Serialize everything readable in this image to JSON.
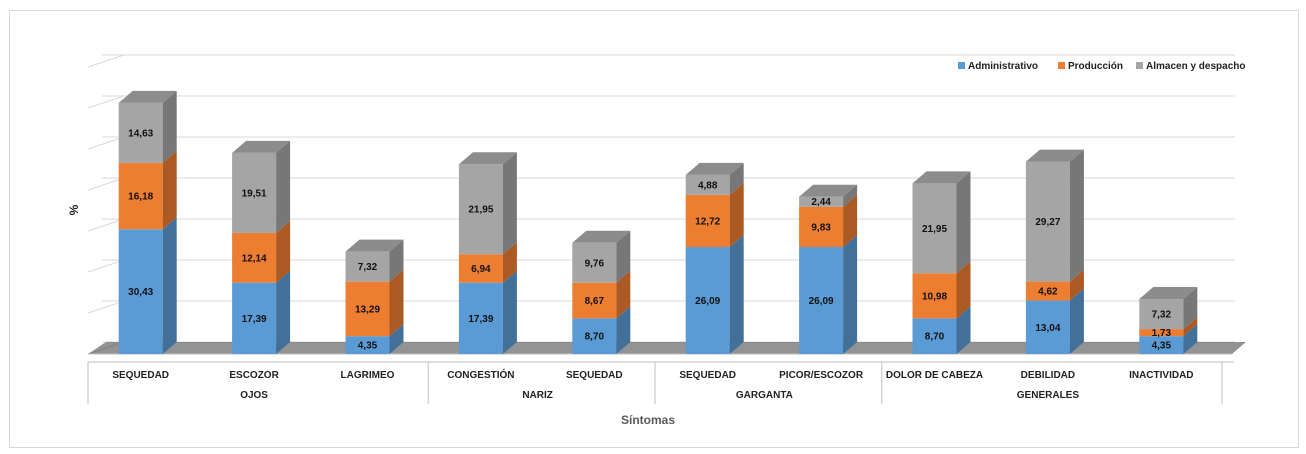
{
  "chart_data": {
    "type": "bar",
    "stacked": true,
    "three_d": true,
    "xlabel": "Síntomas",
    "ylabel": "%",
    "ylim": [
      0,
      70
    ],
    "grid": true,
    "legend_position": "top-right",
    "categories": [
      "SEQUEDAD",
      "ESCOZOR",
      "LAGRIMEO",
      "CONGESTIÓN",
      "SEQUEDAD",
      "SEQUEDAD",
      "PICOR/ESCOZOR",
      "DOLOR DE CABEZA",
      "DEBILIDAD",
      "INACTIVIDAD"
    ],
    "groups": [
      {
        "name": "OJOS",
        "count": 3
      },
      {
        "name": "NARIZ",
        "count": 2
      },
      {
        "name": "GARGANTA",
        "count": 2
      },
      {
        "name": "GENERALES",
        "count": 3
      }
    ],
    "series": [
      {
        "name": "Administrativo",
        "color": "#5B9BD5",
        "values": [
          30.43,
          17.39,
          4.35,
          17.39,
          8.7,
          26.09,
          26.09,
          8.7,
          13.04,
          4.35
        ],
        "labels": [
          "30,43",
          "17,39",
          "4,35",
          "17,39",
          "8,70",
          "26,09",
          "26,09",
          "8,70",
          "13,04",
          "4,35"
        ]
      },
      {
        "name": "Producción",
        "color": "#ED7D31",
        "values": [
          16.18,
          12.14,
          13.29,
          6.94,
          8.67,
          12.72,
          9.83,
          10.98,
          4.62,
          1.73
        ],
        "labels": [
          "16,18",
          "12,14",
          "13,29",
          "6,94",
          "8,67",
          "12,72",
          "9,83",
          "10,98",
          "4,62",
          "1,73"
        ]
      },
      {
        "name": "Almacen y despacho",
        "color": "#A5A5A5",
        "values": [
          14.63,
          19.51,
          7.32,
          21.95,
          9.76,
          4.88,
          2.44,
          21.95,
          29.27,
          7.32
        ],
        "labels": [
          "14,63",
          "19,51",
          "7,32",
          "21,95",
          "9,76",
          "4,88",
          "2,44",
          "21,95",
          "29,27",
          "7,32"
        ]
      }
    ]
  }
}
